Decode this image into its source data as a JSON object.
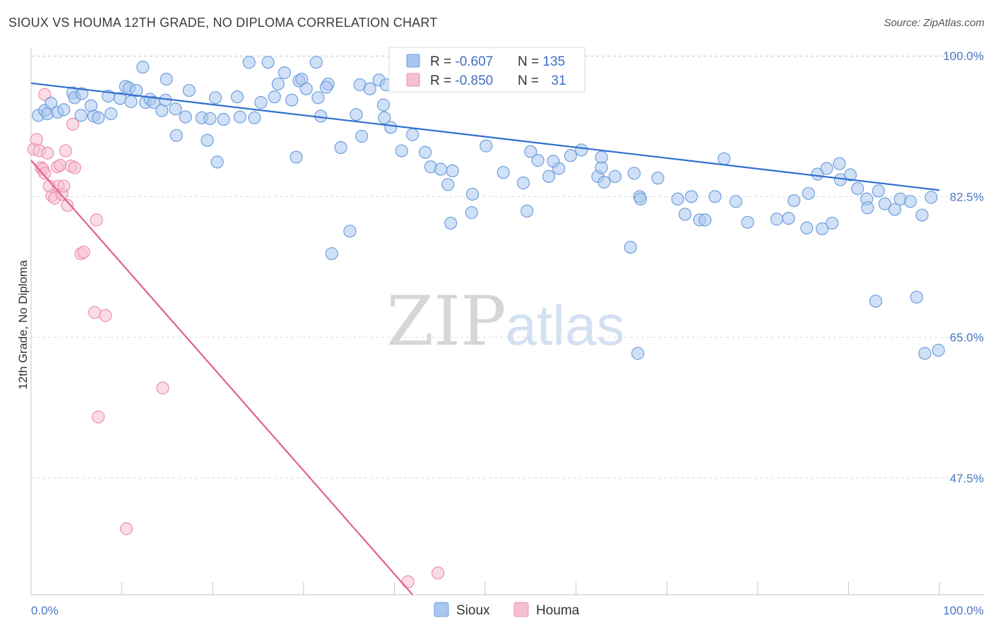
{
  "title": "SIOUX VS HOUMA 12TH GRADE, NO DIPLOMA CORRELATION CHART",
  "source": "Source: ZipAtlas.com",
  "watermark": {
    "zip": "ZIP",
    "atlas": "atlas"
  },
  "colors": {
    "sioux_fill": "#a9c6ef",
    "sioux_stroke": "#6f9fdc",
    "sioux_line": "#2f6fcf",
    "houma_fill": "#f6bfd0",
    "houma_stroke": "#ec8fae",
    "houma_line": "#e0608f",
    "tick_text": "#4a77c4",
    "grid": "#dcdcdc"
  },
  "legend_box": {
    "sioux": {
      "r_label": "R = ",
      "r_value": "-0.607",
      "n_label": "N = ",
      "n_value": "135"
    },
    "houma": {
      "r_label": "R = ",
      "r_value": "-0.850",
      "n_label": "N = ",
      "n_value": "31"
    }
  },
  "chart_data": {
    "type": "scatter",
    "title": "SIOUX VS HOUMA 12TH GRADE, NO DIPLOMA CORRELATION CHART",
    "xlabel": "",
    "ylabel": "12th Grade, No Diploma",
    "xlim": [
      0,
      100
    ],
    "ylim": [
      33,
      101.5
    ],
    "x_tick_labels": {
      "left": "0.0%",
      "right": "100.0%"
    },
    "y_ticks": [
      {
        "value": 100.0,
        "label": "100.0%"
      },
      {
        "value": 82.5,
        "label": "82.5%"
      },
      {
        "value": 65.0,
        "label": "65.0%"
      },
      {
        "value": 47.5,
        "label": "47.5%"
      }
    ],
    "grid": true,
    "legend_position": "top-center",
    "series": [
      {
        "name": "Sioux",
        "r": -0.607,
        "n": 135,
        "trend": {
          "x0": 0,
          "y0": 96.6,
          "x1": 100,
          "y1": 83.3
        },
        "points": [
          [
            0.8,
            92.6
          ],
          [
            1.5,
            93.2
          ],
          [
            1.8,
            92.8
          ],
          [
            2.2,
            94.1
          ],
          [
            2.9,
            93.0
          ],
          [
            3.6,
            93.3
          ],
          [
            4.6,
            95.4
          ],
          [
            4.8,
            94.8
          ],
          [
            5.6,
            95.3
          ],
          [
            5.5,
            92.6
          ],
          [
            6.6,
            93.8
          ],
          [
            6.9,
            92.5
          ],
          [
            7.4,
            92.3
          ],
          [
            8.5,
            95.0
          ],
          [
            8.8,
            92.8
          ],
          [
            9.8,
            94.7
          ],
          [
            10.4,
            96.2
          ],
          [
            11.0,
            94.3
          ],
          [
            10.8,
            96.0
          ],
          [
            11.6,
            95.7
          ],
          [
            12.3,
            98.6
          ],
          [
            12.6,
            94.2
          ],
          [
            13.1,
            94.6
          ],
          [
            13.5,
            94.2
          ],
          [
            14.4,
            93.2
          ],
          [
            14.8,
            94.5
          ],
          [
            14.9,
            97.1
          ],
          [
            15.9,
            93.4
          ],
          [
            16.0,
            90.1
          ],
          [
            17.0,
            92.4
          ],
          [
            17.4,
            95.7
          ],
          [
            18.8,
            92.3
          ],
          [
            19.7,
            92.2
          ],
          [
            19.4,
            89.5
          ],
          [
            20.3,
            94.8
          ],
          [
            20.5,
            86.8
          ],
          [
            21.2,
            92.1
          ],
          [
            22.7,
            94.9
          ],
          [
            23.0,
            92.4
          ],
          [
            24.0,
            99.2
          ],
          [
            26.1,
            99.2
          ],
          [
            24.6,
            92.3
          ],
          [
            25.3,
            94.2
          ],
          [
            26.8,
            94.9
          ],
          [
            27.2,
            96.5
          ],
          [
            27.9,
            97.9
          ],
          [
            28.7,
            94.5
          ],
          [
            29.5,
            96.9
          ],
          [
            29.8,
            97.1
          ],
          [
            29.2,
            87.4
          ],
          [
            30.3,
            95.9
          ],
          [
            31.6,
            94.8
          ],
          [
            31.9,
            92.5
          ],
          [
            32.7,
            96.5
          ],
          [
            31.4,
            99.2
          ],
          [
            32.5,
            96.1
          ],
          [
            34.1,
            88.6
          ],
          [
            33.1,
            75.4
          ],
          [
            35.1,
            78.2
          ],
          [
            35.8,
            92.7
          ],
          [
            36.2,
            96.4
          ],
          [
            36.4,
            90.0
          ],
          [
            37.3,
            95.9
          ],
          [
            38.3,
            97.0
          ],
          [
            38.8,
            93.9
          ],
          [
            38.9,
            92.3
          ],
          [
            39.1,
            96.4
          ],
          [
            39.6,
            91.1
          ],
          [
            40.8,
            88.2
          ],
          [
            42.0,
            90.2
          ],
          [
            43.4,
            88.0
          ],
          [
            44.0,
            86.2
          ],
          [
            45.1,
            85.9
          ],
          [
            46.4,
            85.7
          ],
          [
            45.9,
            84.0
          ],
          [
            46.2,
            79.2
          ],
          [
            48.6,
            82.8
          ],
          [
            48.5,
            80.5
          ],
          [
            50.1,
            88.8
          ],
          [
            52.0,
            85.5
          ],
          [
            54.2,
            84.2
          ],
          [
            54.6,
            80.7
          ],
          [
            55.8,
            87.0
          ],
          [
            55.0,
            88.1
          ],
          [
            57.0,
            85.0
          ],
          [
            58.1,
            86.0
          ],
          [
            57.5,
            86.9
          ],
          [
            59.4,
            87.6
          ],
          [
            60.6,
            88.3
          ],
          [
            62.4,
            85.0
          ],
          [
            62.8,
            86.1
          ],
          [
            62.8,
            87.4
          ],
          [
            63.1,
            84.3
          ],
          [
            64.3,
            85.0
          ],
          [
            66.4,
            85.4
          ],
          [
            67.0,
            82.5
          ],
          [
            67.1,
            82.2
          ],
          [
            69.0,
            84.8
          ],
          [
            66.0,
            76.2
          ],
          [
            66.8,
            63.0
          ],
          [
            71.2,
            82.2
          ],
          [
            72.0,
            80.3
          ],
          [
            72.7,
            82.5
          ],
          [
            73.6,
            79.6
          ],
          [
            74.2,
            79.6
          ],
          [
            75.3,
            82.5
          ],
          [
            76.3,
            87.2
          ],
          [
            77.6,
            81.9
          ],
          [
            78.9,
            79.3
          ],
          [
            82.1,
            79.7
          ],
          [
            83.4,
            79.8
          ],
          [
            84.0,
            82.0
          ],
          [
            85.6,
            82.9
          ],
          [
            85.4,
            78.6
          ],
          [
            86.6,
            85.3
          ],
          [
            87.6,
            86.0
          ],
          [
            87.1,
            78.5
          ],
          [
            88.2,
            79.2
          ],
          [
            89.1,
            84.6
          ],
          [
            89.0,
            86.6
          ],
          [
            90.2,
            85.2
          ],
          [
            91.0,
            83.5
          ],
          [
            92.0,
            82.2
          ],
          [
            92.1,
            81.1
          ],
          [
            93.3,
            83.2
          ],
          [
            94.0,
            81.6
          ],
          [
            95.1,
            80.9
          ],
          [
            95.7,
            82.2
          ],
          [
            96.8,
            81.9
          ],
          [
            98.1,
            80.2
          ],
          [
            98.4,
            63.0
          ],
          [
            99.1,
            82.4
          ],
          [
            99.9,
            63.4
          ],
          [
            97.5,
            70.0
          ],
          [
            93.0,
            69.5
          ]
        ]
      },
      {
        "name": "Houma",
        "r": -0.85,
        "n": 31,
        "trend": {
          "x0": 0,
          "y0": 87.0,
          "x1": 42,
          "y1": 33.0
        },
        "points": [
          [
            0.3,
            88.4
          ],
          [
            0.6,
            89.6
          ],
          [
            0.9,
            88.2
          ],
          [
            1.1,
            86.1
          ],
          [
            1.3,
            85.9
          ],
          [
            1.5,
            85.4
          ],
          [
            1.8,
            87.9
          ],
          [
            2.0,
            83.8
          ],
          [
            2.3,
            82.6
          ],
          [
            2.6,
            82.3
          ],
          [
            2.9,
            86.2
          ],
          [
            3.0,
            83.8
          ],
          [
            3.2,
            86.4
          ],
          [
            3.4,
            82.8
          ],
          [
            3.6,
            83.8
          ],
          [
            3.8,
            88.2
          ],
          [
            4.0,
            81.4
          ],
          [
            4.4,
            86.3
          ],
          [
            4.6,
            91.5
          ],
          [
            4.8,
            86.1
          ],
          [
            5.5,
            75.4
          ],
          [
            5.8,
            75.6
          ],
          [
            7.2,
            79.6
          ],
          [
            7.0,
            68.1
          ],
          [
            8.2,
            67.7
          ],
          [
            7.4,
            55.1
          ],
          [
            14.5,
            58.7
          ],
          [
            10.5,
            41.2
          ],
          [
            41.5,
            34.6
          ],
          [
            44.8,
            35.7
          ],
          [
            1.5,
            95.2
          ]
        ]
      }
    ]
  }
}
